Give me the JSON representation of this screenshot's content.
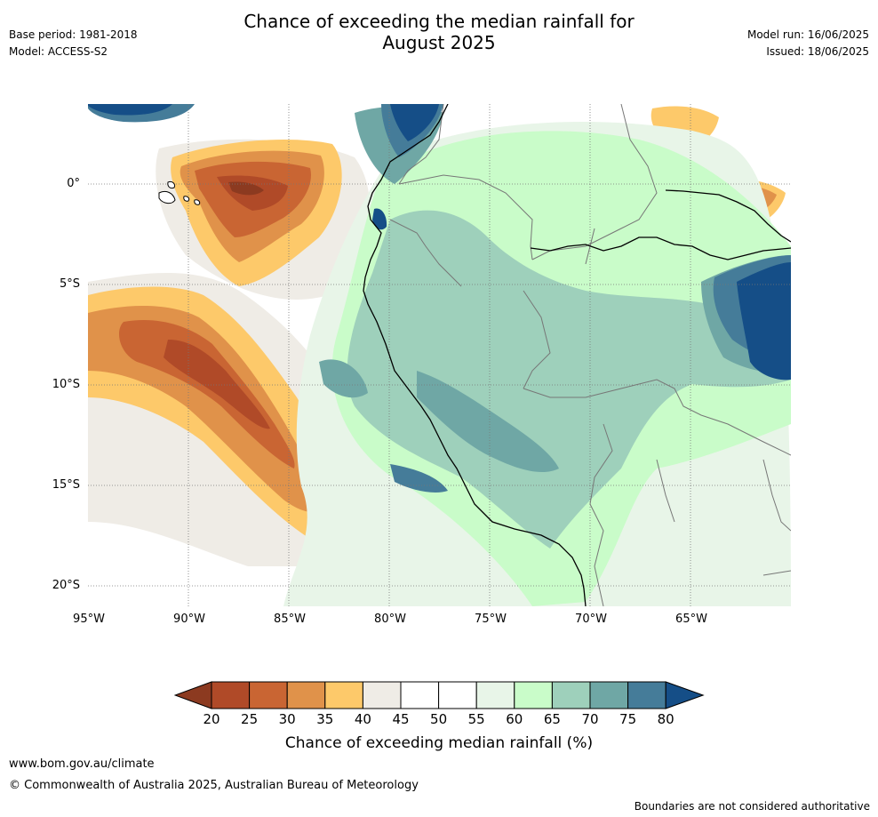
{
  "header": {
    "title_line1": "Chance of exceeding the median rainfall for",
    "title_line2": "August 2025",
    "base_period": "Base period: 1981-2018",
    "model": "Model: ACCESS-S2",
    "model_run": "Model run: 16/06/2025",
    "issued": "Issued: 18/06/2025"
  },
  "map": {
    "lat_labels": [
      "0°",
      "5°S",
      "10°S",
      "15°S",
      "20°S"
    ],
    "lon_labels": [
      "95°W",
      "90°W",
      "85°W",
      "80°W",
      "75°W",
      "70°W",
      "65°W"
    ]
  },
  "colorbar": {
    "title": "Chance of exceeding median rainfall (%)",
    "ticks": [
      "20",
      "25",
      "30",
      "35",
      "40",
      "45",
      "50",
      "55",
      "60",
      "65",
      "70",
      "75",
      "80"
    ],
    "colors": [
      "#8c3a20",
      "#b04a28",
      "#c96533",
      "#e0924a",
      "#fdc96a",
      "#efece6",
      "#ffffff",
      "#ffffff",
      "#e8f5e8",
      "#c9fcc9",
      "#9ed0bb",
      "#6fa7a5",
      "#457c99",
      "#154e87"
    ]
  },
  "footer": {
    "website": "www.bom.gov.au/climate",
    "copyright": "© Commonwealth of Australia 2025, Australian Bureau of Meteorology",
    "disclaimer": "Boundaries are not considered authoritative"
  }
}
